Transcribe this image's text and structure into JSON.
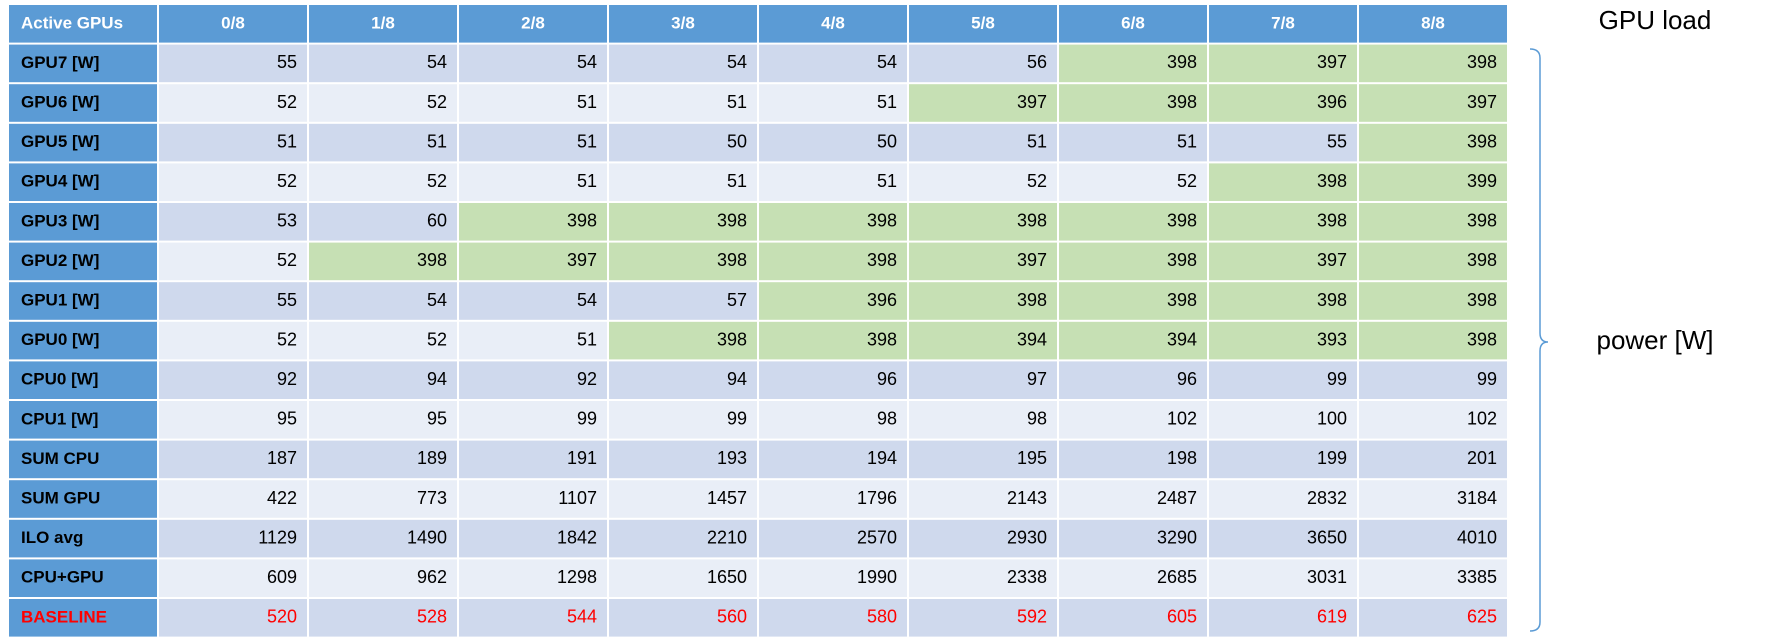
{
  "table": {
    "header": [
      "Active GPUs",
      "0/8",
      "1/8",
      "2/8",
      "3/8",
      "4/8",
      "5/8",
      "6/8",
      "7/8",
      "8/8"
    ],
    "highlight_color": "#c6e0b4",
    "rows": [
      {
        "label": "GPU7 [W]",
        "values": [
          55,
          54,
          54,
          54,
          54,
          56,
          398,
          397,
          398
        ],
        "highlighted_columns": [
          6,
          7,
          8
        ]
      },
      {
        "label": "GPU6 [W]",
        "values": [
          52,
          52,
          51,
          51,
          51,
          397,
          398,
          396,
          397
        ],
        "highlighted_columns": [
          5,
          6,
          7,
          8
        ]
      },
      {
        "label": "GPU5 [W]",
        "values": [
          51,
          51,
          51,
          50,
          50,
          51,
          51,
          55,
          398
        ],
        "highlighted_columns": [
          8
        ]
      },
      {
        "label": "GPU4 [W]",
        "values": [
          52,
          52,
          51,
          51,
          51,
          52,
          52,
          398,
          399
        ],
        "highlighted_columns": [
          7,
          8
        ]
      },
      {
        "label": "GPU3 [W]",
        "values": [
          53,
          60,
          398,
          398,
          398,
          398,
          398,
          398,
          398
        ],
        "highlighted_columns": [
          2,
          3,
          4,
          5,
          6,
          7,
          8
        ]
      },
      {
        "label": "GPU2 [W]",
        "values": [
          52,
          398,
          397,
          398,
          398,
          397,
          398,
          397,
          398
        ],
        "highlighted_columns": [
          1,
          2,
          3,
          4,
          5,
          6,
          7,
          8
        ]
      },
      {
        "label": "GPU1 [W]",
        "values": [
          55,
          54,
          54,
          57,
          396,
          398,
          398,
          398,
          398
        ],
        "highlighted_columns": [
          4,
          5,
          6,
          7,
          8
        ]
      },
      {
        "label": "GPU0 [W]",
        "values": [
          52,
          52,
          51,
          398,
          398,
          394,
          394,
          393,
          398
        ],
        "highlighted_columns": [
          3,
          4,
          5,
          6,
          7,
          8
        ]
      },
      {
        "label": "CPU0 [W]",
        "values": [
          92,
          94,
          92,
          94,
          96,
          97,
          96,
          99,
          99
        ]
      },
      {
        "label": "CPU1 [W]",
        "values": [
          95,
          95,
          99,
          99,
          98,
          98,
          102,
          100,
          102
        ]
      },
      {
        "label": "SUM CPU",
        "values": [
          187,
          189,
          191,
          193,
          194,
          195,
          198,
          199,
          201
        ]
      },
      {
        "label": "SUM GPU",
        "values": [
          422,
          773,
          1107,
          1457,
          1796,
          2143,
          2487,
          2832,
          3184
        ]
      },
      {
        "label": "ILO avg",
        "values": [
          1129,
          1490,
          1842,
          2210,
          2570,
          2930,
          3290,
          3650,
          4010
        ]
      },
      {
        "label": "CPU+GPU",
        "values": [
          609,
          962,
          1298,
          1650,
          1990,
          2338,
          2685,
          3031,
          3385
        ]
      },
      {
        "label": "BASELINE",
        "values": [
          520,
          528,
          544,
          560,
          580,
          592,
          605,
          619,
          625
        ],
        "color": "#ff0000"
      }
    ]
  },
  "side_labels": {
    "top": "GPU load",
    "bracket": "power [W]"
  }
}
